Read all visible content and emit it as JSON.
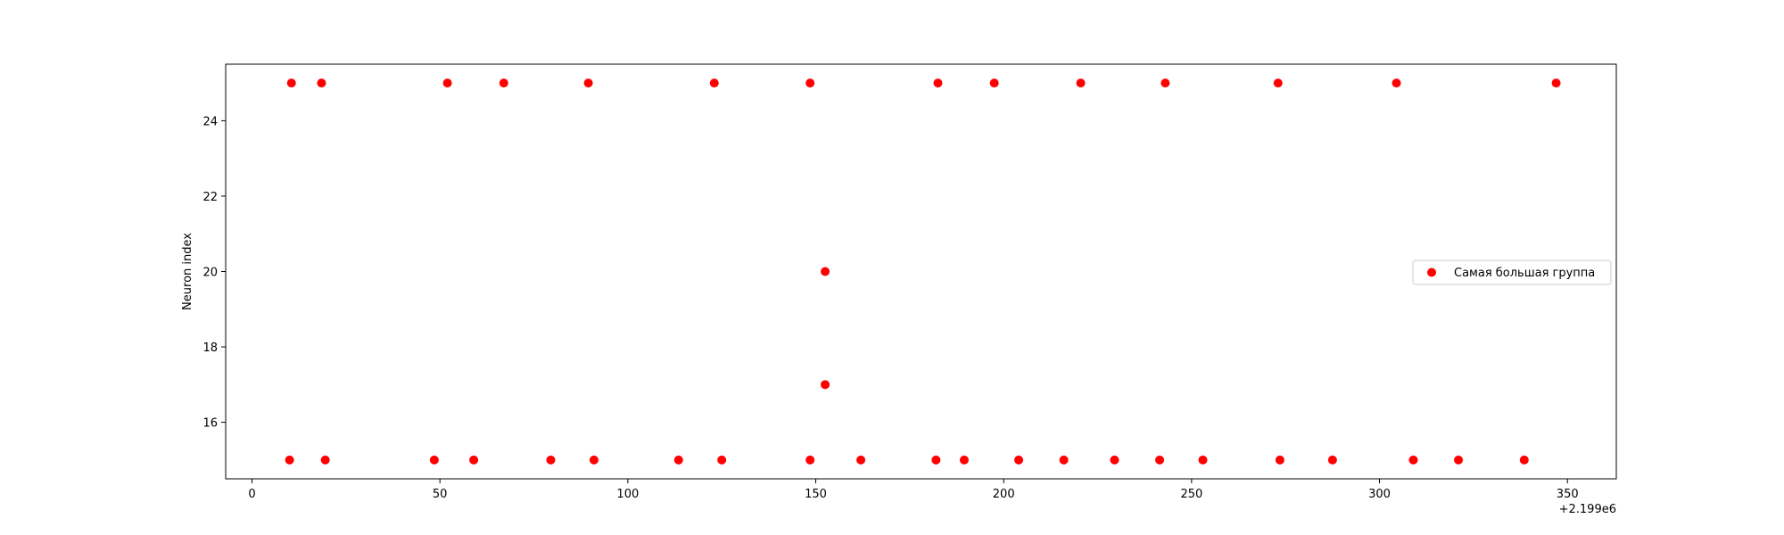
{
  "chart_data": {
    "type": "scatter",
    "title": "",
    "xlabel": "",
    "ylabel": "Neuron index",
    "x_offset_label": "+2.199e6",
    "xlim": [
      -7,
      363
    ],
    "ylim": [
      14.5,
      25.5
    ],
    "x_ticks": [
      0,
      50,
      100,
      150,
      200,
      250,
      300,
      350
    ],
    "y_ticks": [
      16,
      18,
      20,
      22,
      24
    ],
    "grid": false,
    "legend": {
      "position": "center-right"
    },
    "series": [
      {
        "name": "Самая большая группа",
        "color": "#ff0000",
        "points": [
          {
            "x": 10.5,
            "y": 25
          },
          {
            "x": 18.5,
            "y": 25
          },
          {
            "x": 52,
            "y": 25
          },
          {
            "x": 67,
            "y": 25
          },
          {
            "x": 89.5,
            "y": 25
          },
          {
            "x": 123,
            "y": 25
          },
          {
            "x": 148.5,
            "y": 25
          },
          {
            "x": 182.5,
            "y": 25
          },
          {
            "x": 197.5,
            "y": 25
          },
          {
            "x": 220.5,
            "y": 25
          },
          {
            "x": 243,
            "y": 25
          },
          {
            "x": 273,
            "y": 25
          },
          {
            "x": 304.5,
            "y": 25
          },
          {
            "x": 347,
            "y": 25
          },
          {
            "x": 152.5,
            "y": 20
          },
          {
            "x": 152.5,
            "y": 17
          },
          {
            "x": 10,
            "y": 15
          },
          {
            "x": 19.5,
            "y": 15
          },
          {
            "x": 48.5,
            "y": 15
          },
          {
            "x": 59,
            "y": 15
          },
          {
            "x": 79.5,
            "y": 15
          },
          {
            "x": 91,
            "y": 15
          },
          {
            "x": 113.5,
            "y": 15
          },
          {
            "x": 125,
            "y": 15
          },
          {
            "x": 148.5,
            "y": 15
          },
          {
            "x": 162,
            "y": 15
          },
          {
            "x": 182,
            "y": 15
          },
          {
            "x": 189.5,
            "y": 15
          },
          {
            "x": 204,
            "y": 15
          },
          {
            "x": 216,
            "y": 15
          },
          {
            "x": 229.5,
            "y": 15
          },
          {
            "x": 241.5,
            "y": 15
          },
          {
            "x": 253,
            "y": 15
          },
          {
            "x": 273.5,
            "y": 15
          },
          {
            "x": 287.5,
            "y": 15
          },
          {
            "x": 309,
            "y": 15
          },
          {
            "x": 321,
            "y": 15
          },
          {
            "x": 338.5,
            "y": 15
          }
        ]
      }
    ]
  }
}
